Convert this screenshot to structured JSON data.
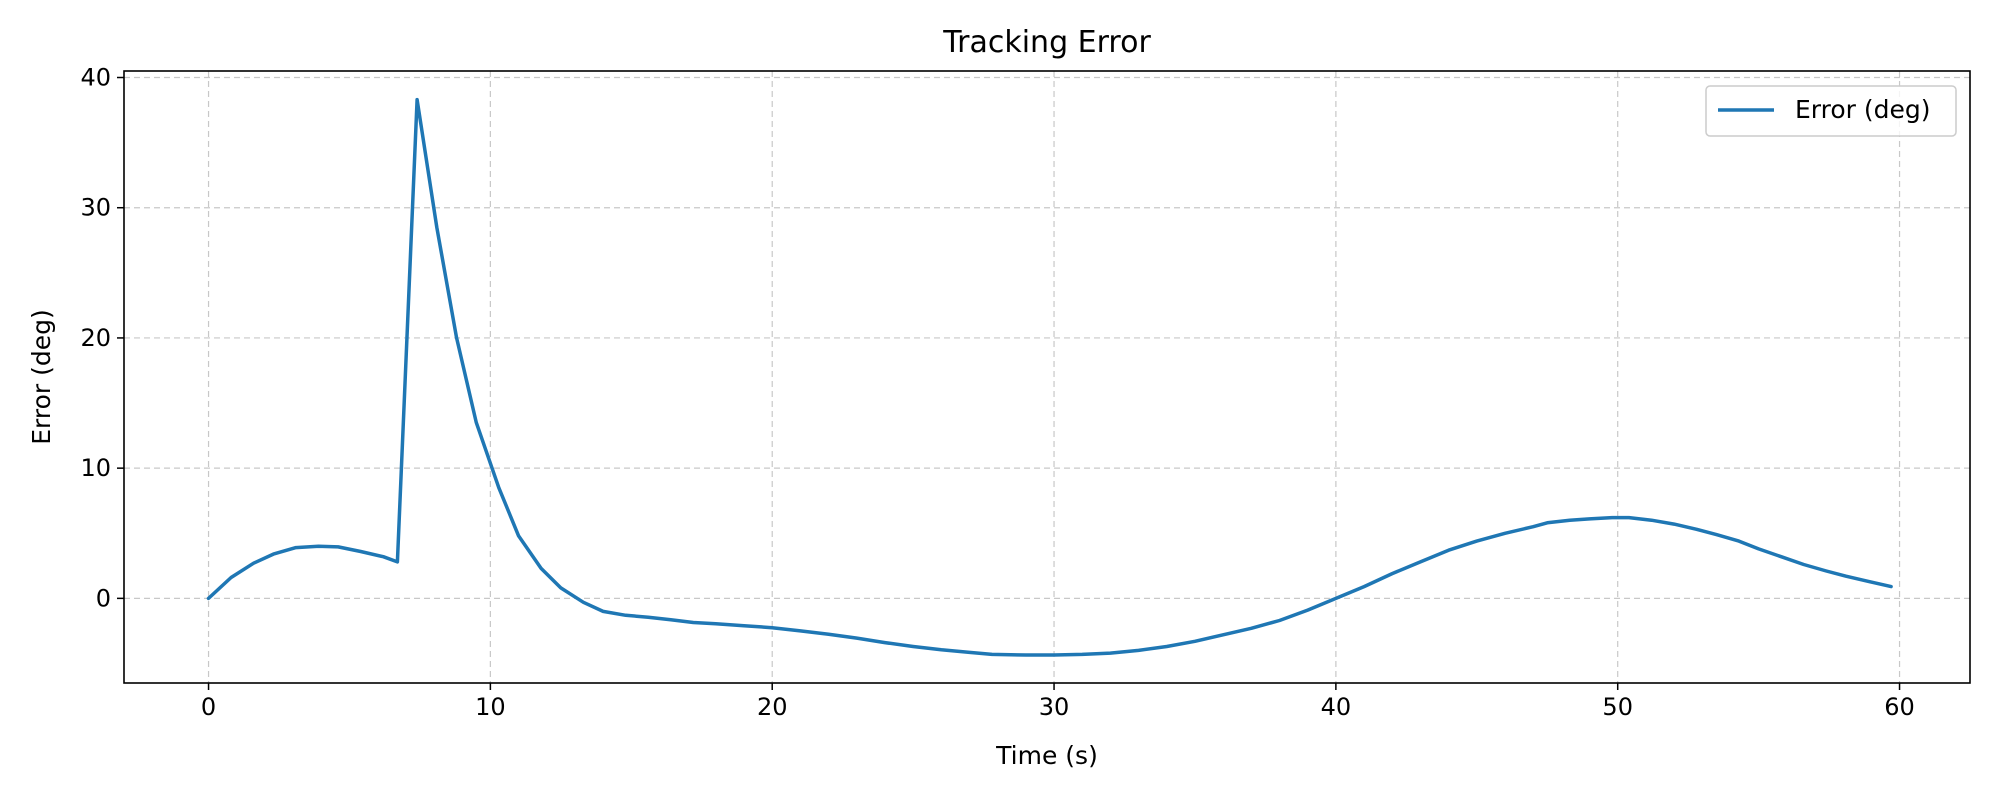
{
  "chart_data": {
    "type": "line",
    "title": "Tracking Error",
    "xlabel": "Time (s)",
    "ylabel": "Error (deg)",
    "xlim": [
      -3,
      62.5
    ],
    "ylim": [
      -6.5,
      40.5
    ],
    "xticks": [
      0,
      10,
      20,
      30,
      40,
      50,
      60
    ],
    "yticks": [
      0,
      10,
      20,
      30,
      40
    ],
    "grid": true,
    "legend_position": "top-right",
    "colors": {
      "series": "#1f77b4",
      "grid": "#b0b0b0",
      "axes": "#000000"
    },
    "series": [
      {
        "name": "Error (deg)",
        "x": [
          0,
          0.8,
          1.6,
          2.3,
          3.1,
          3.9,
          4.6,
          5.4,
          6.2,
          6.7,
          7.4,
          8.1,
          8.8,
          9.5,
          10.3,
          11.0,
          11.8,
          12.5,
          13.3,
          14.0,
          14.8,
          15.6,
          16.4,
          17.2,
          18.0,
          19.0,
          20.0,
          21.0,
          22.0,
          23.0,
          24.0,
          25.0,
          26.0,
          27.0,
          27.8,
          29.0,
          30.0,
          31.0,
          32.0,
          33.0,
          34.0,
          35.0,
          36.0,
          37.0,
          38.0,
          39.0,
          40.0,
          41.0,
          42.0,
          43.0,
          44.0,
          45.0,
          46.0,
          47.0,
          47.5,
          48.3,
          49.0,
          49.8,
          50.4,
          51.2,
          52.0,
          52.8,
          53.5,
          54.3,
          55.0,
          55.8,
          56.6,
          57.4,
          58.1,
          58.9,
          59.7
        ],
        "y": [
          0,
          1.6,
          2.7,
          3.4,
          3.9,
          4.0,
          3.95,
          3.6,
          3.2,
          2.8,
          38.3,
          28.5,
          20.0,
          13.5,
          8.5,
          4.8,
          2.3,
          0.8,
          -0.3,
          -1.0,
          -1.3,
          -1.45,
          -1.65,
          -1.85,
          -1.95,
          -2.1,
          -2.25,
          -2.5,
          -2.75,
          -3.05,
          -3.4,
          -3.7,
          -3.95,
          -4.15,
          -4.3,
          -4.35,
          -4.35,
          -4.3,
          -4.2,
          -4.0,
          -3.7,
          -3.3,
          -2.8,
          -2.3,
          -1.7,
          -0.9,
          0,
          0.9,
          1.9,
          2.8,
          3.7,
          4.4,
          5.0,
          5.5,
          5.8,
          6.0,
          6.1,
          6.2,
          6.2,
          6.0,
          5.7,
          5.3,
          4.9,
          4.4,
          3.8,
          3.2,
          2.6,
          2.1,
          1.7,
          1.3,
          0.9
        ]
      }
    ]
  }
}
